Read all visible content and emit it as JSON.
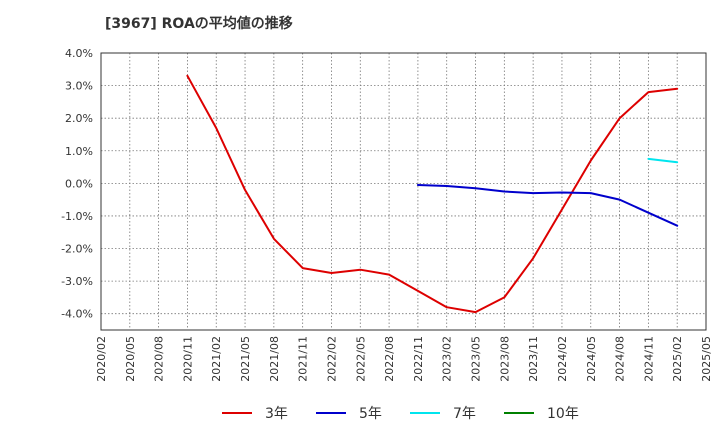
{
  "chart_data": {
    "type": "line",
    "title": "[3967]  ROAの平均値の推移",
    "xlabel": "",
    "ylabel": "",
    "ylim": [
      -4.5,
      4.0
    ],
    "y_ticks": [
      4.0,
      3.0,
      2.0,
      1.0,
      0.0,
      -1.0,
      -2.0,
      -3.0,
      -4.0
    ],
    "y_tick_labels": [
      "4.0%",
      "3.0%",
      "2.0%",
      "1.0%",
      "0.0%",
      "-1.0%",
      "-2.0%",
      "-3.0%",
      "-4.0%"
    ],
    "x_tick_labels": [
      "2020/02",
      "2020/05",
      "2020/08",
      "2020/11",
      "2021/02",
      "2021/05",
      "2021/08",
      "2021/11",
      "2022/02",
      "2022/05",
      "2022/08",
      "2022/11",
      "2023/02",
      "2023/05",
      "2023/08",
      "2023/11",
      "2024/02",
      "2024/05",
      "2024/08",
      "2024/11",
      "2025/02",
      "2025/05"
    ],
    "grid": true,
    "legend_position": "bottom",
    "series": [
      {
        "name": "3年",
        "color": "#dd0000",
        "points": [
          [
            "2020/11",
            3.3
          ],
          [
            "2021/02",
            1.7
          ],
          [
            "2021/05",
            -0.2
          ],
          [
            "2021/08",
            -1.7
          ],
          [
            "2021/11",
            -2.6
          ],
          [
            "2022/02",
            -2.75
          ],
          [
            "2022/05",
            -2.65
          ],
          [
            "2022/08",
            -2.8
          ],
          [
            "2022/11",
            -3.3
          ],
          [
            "2023/02",
            -3.8
          ],
          [
            "2023/05",
            -3.95
          ],
          [
            "2023/08",
            -3.5
          ],
          [
            "2023/11",
            -2.3
          ],
          [
            "2024/02",
            -0.8
          ],
          [
            "2024/05",
            0.7
          ],
          [
            "2024/08",
            2.0
          ],
          [
            "2024/11",
            2.8
          ],
          [
            "2025/02",
            2.9
          ]
        ]
      },
      {
        "name": "5年",
        "color": "#0000cc",
        "points": [
          [
            "2022/11",
            -0.05
          ],
          [
            "2023/02",
            -0.08
          ],
          [
            "2023/05",
            -0.15
          ],
          [
            "2023/08",
            -0.25
          ],
          [
            "2023/11",
            -0.3
          ],
          [
            "2024/02",
            -0.28
          ],
          [
            "2024/05",
            -0.3
          ],
          [
            "2024/08",
            -0.5
          ],
          [
            "2024/11",
            -0.9
          ],
          [
            "2025/02",
            -1.3
          ]
        ]
      },
      {
        "name": "7年",
        "color": "#00e5ee",
        "points": [
          [
            "2024/11",
            0.75
          ],
          [
            "2025/02",
            0.65
          ]
        ]
      },
      {
        "name": "10年",
        "color": "#008000",
        "points": []
      }
    ]
  }
}
